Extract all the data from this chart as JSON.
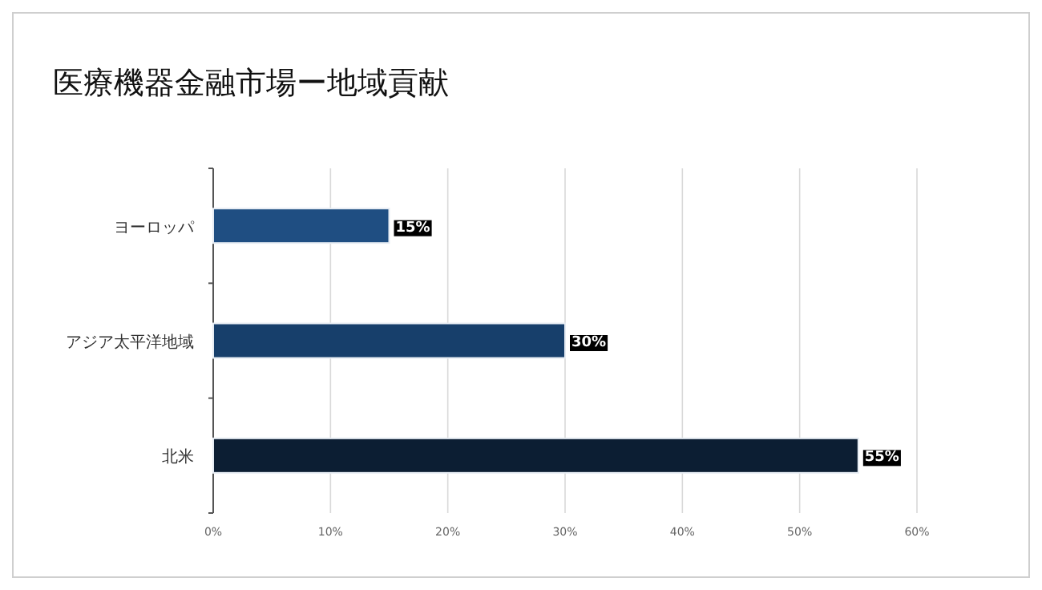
{
  "chart_data": {
    "type": "bar",
    "orientation": "horizontal",
    "title": "医療機器金融市場ー地域貢献",
    "categories": [
      "ヨーロッパ",
      "アジア太平洋地域",
      "北米"
    ],
    "values": [
      15,
      30,
      55
    ],
    "colors": [
      "#1f4e82",
      "#173f6b",
      "#0c1e33"
    ],
    "xlim": [
      0,
      60
    ],
    "xticks": [
      {
        "value": 0,
        "label": "0%"
      },
      {
        "value": 10,
        "label": "10%"
      },
      {
        "value": 20,
        "label": "20%"
      },
      {
        "value": 30,
        "label": "30%"
      },
      {
        "value": 40,
        "label": "40%"
      },
      {
        "value": 50,
        "label": "50%"
      },
      {
        "value": 60,
        "label": "60%"
      }
    ],
    "value_labels": [
      "15%",
      "30%",
      "55%"
    ],
    "grid": "x"
  }
}
